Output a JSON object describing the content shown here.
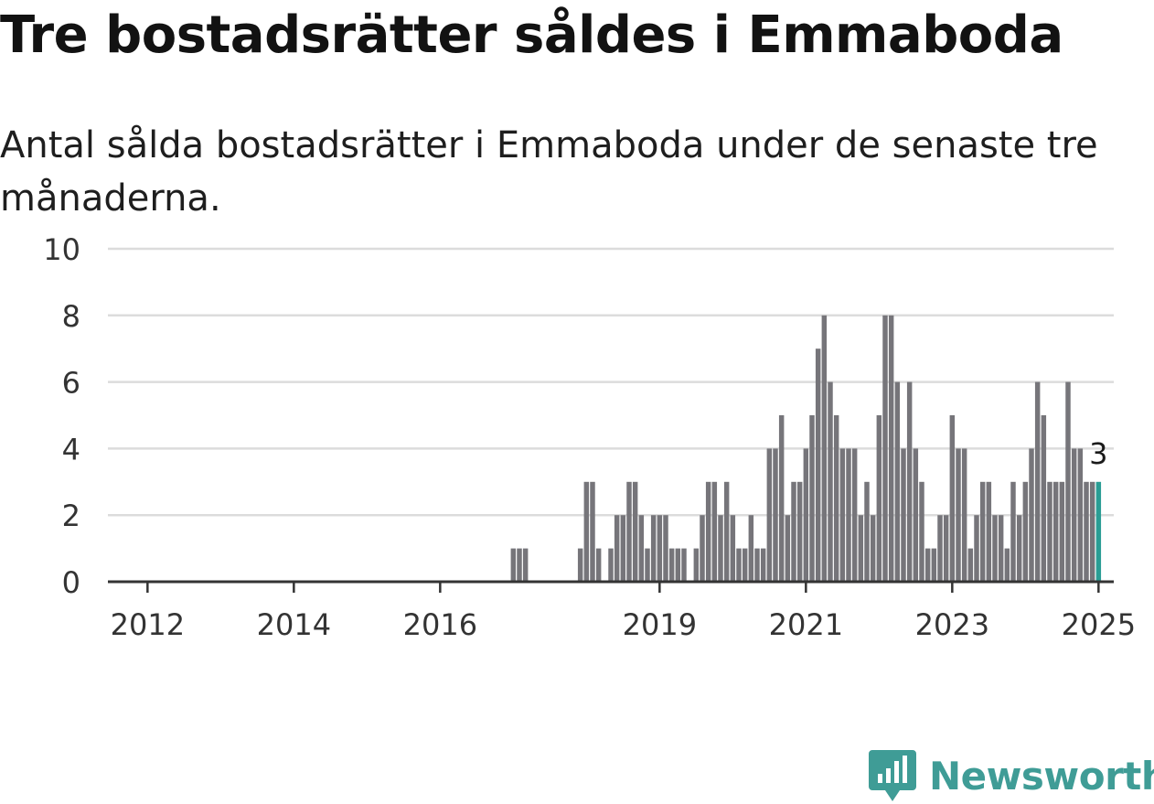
{
  "header": {
    "title": "Tre bostadsrätter såldes i Emmaboda",
    "subtitle": "Antal sålda bostadsrätter i Emmaboda under de senaste tre månaderna."
  },
  "branding": {
    "name": "Newsworthy",
    "color": "#3f9c96"
  },
  "colors": {
    "bar": "#76757a",
    "highlight": "#2a9d94",
    "grid": "#dcdcdc",
    "axis": "#333333"
  },
  "chart_data": {
    "type": "bar",
    "x_start": "2011-07",
    "x_end": "2025-03",
    "bars_from": "2017-01",
    "values": [
      1,
      1,
      1,
      0,
      0,
      0,
      0,
      0,
      0,
      0,
      0,
      1,
      3,
      3,
      1,
      0,
      1,
      2,
      2,
      3,
      3,
      2,
      1,
      2,
      2,
      2,
      1,
      1,
      1,
      0,
      1,
      2,
      3,
      3,
      2,
      3,
      2,
      1,
      1,
      2,
      1,
      1,
      4,
      4,
      5,
      2,
      3,
      3,
      4,
      5,
      7,
      8,
      6,
      5,
      4,
      4,
      4,
      2,
      3,
      2,
      5,
      8,
      8,
      6,
      4,
      6,
      4,
      3,
      1,
      1,
      2,
      2,
      5,
      4,
      4,
      1,
      2,
      3,
      3,
      2,
      2,
      1,
      3,
      2,
      3,
      4,
      6,
      5,
      3,
      3,
      3,
      6,
      4,
      4,
      3,
      3,
      3
    ],
    "highlight_label": "3",
    "x_ticks": [
      {
        "label": "2012",
        "date": "2012-01"
      },
      {
        "label": "2014",
        "date": "2014-01"
      },
      {
        "label": "2016",
        "date": "2016-01"
      },
      {
        "label": "2019",
        "date": "2019-01"
      },
      {
        "label": "2021",
        "date": "2021-01"
      },
      {
        "label": "2023",
        "date": "2023-01"
      },
      {
        "label": "2025",
        "date": "2025-01"
      }
    ],
    "y_ticks": [
      "0",
      "2",
      "4",
      "6",
      "8",
      "10"
    ],
    "ylim": [
      0,
      10
    ],
    "grid": true
  }
}
